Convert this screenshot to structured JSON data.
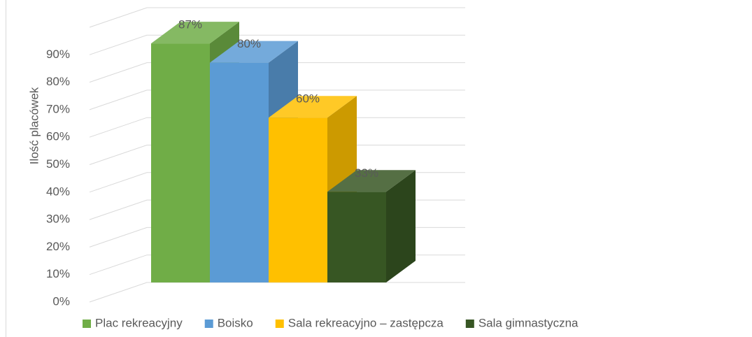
{
  "chart_data": {
    "type": "bar3d",
    "y_label": "Ilość placówek",
    "ylim": [
      0,
      100
    ],
    "yticks": [
      {
        "value": 0,
        "label": "0%"
      },
      {
        "value": 10,
        "label": "10%"
      },
      {
        "value": 20,
        "label": "20%"
      },
      {
        "value": 30,
        "label": "30%"
      },
      {
        "value": 40,
        "label": "40%"
      },
      {
        "value": 50,
        "label": "50%"
      },
      {
        "value": 60,
        "label": "60%"
      },
      {
        "value": 70,
        "label": "70%"
      },
      {
        "value": 80,
        "label": "80%"
      },
      {
        "value": 90,
        "label": "90%"
      }
    ],
    "grid": true,
    "legend": "bottom",
    "series": [
      {
        "name": "Plac rekreacyjny",
        "color": "#70ad47",
        "values": [
          87
        ],
        "value_labels": [
          "87%"
        ]
      },
      {
        "name": "Boisko",
        "color": "#5b9bd5",
        "values": [
          80
        ],
        "value_labels": [
          "80%"
        ]
      },
      {
        "name": "Sala rekreacyjno – zastępcza",
        "color": "#ffc000",
        "values": [
          60
        ],
        "value_labels": [
          "60%"
        ]
      },
      {
        "name": "Sala gimnastyczna",
        "color": "#375623",
        "values": [
          33
        ],
        "value_labels": [
          "33%"
        ]
      }
    ]
  }
}
